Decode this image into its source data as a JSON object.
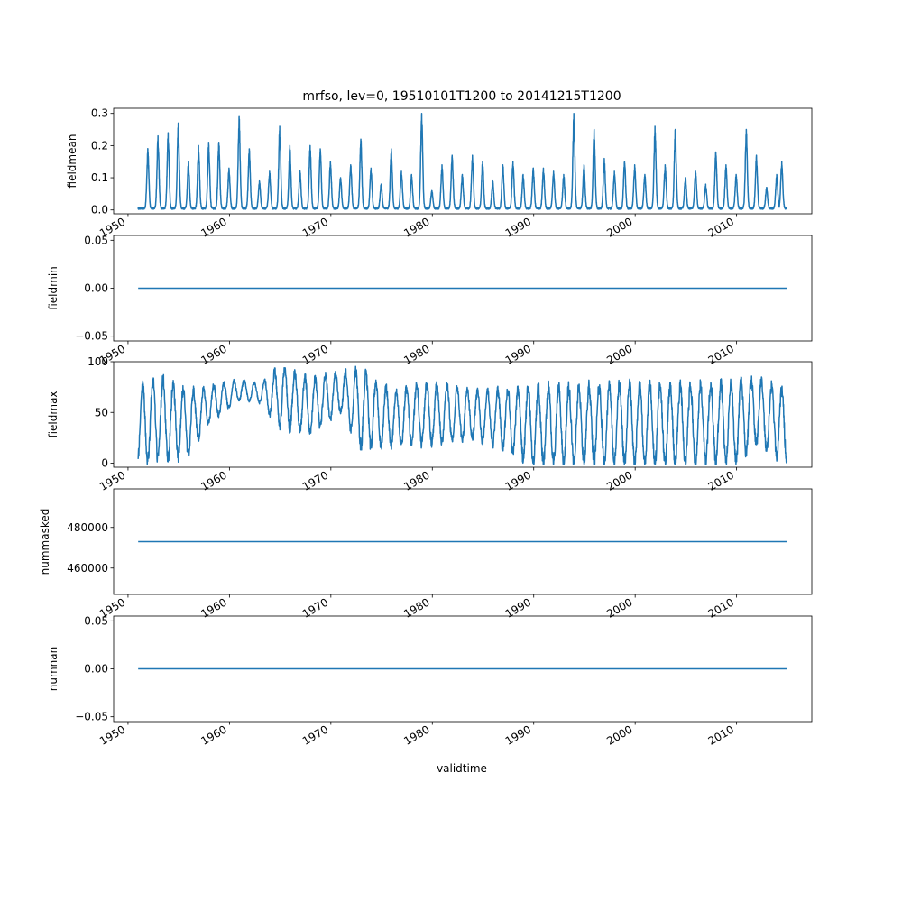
{
  "chart_data": {
    "type": "line",
    "title": "mrfso, lev=0, 19510101T1200 to 20141215T1200",
    "xlabel": "validtime",
    "x_range": [
      "1948-08-01",
      "2017-06-01"
    ],
    "x_ticks": [
      "1950",
      "1960",
      "1970",
      "1980",
      "1990",
      "2000",
      "2010"
    ],
    "series_color": "#1f77b4",
    "grid": false,
    "panels": [
      {
        "ylabel": "fieldmean",
        "ylim": [
          -0.012,
          0.316
        ],
        "y_ticks": [
          "0.0",
          "0.1",
          "0.2",
          "0.3"
        ],
        "pattern": "seasonal-peaks",
        "baseline": 0.005,
        "peaks": [
          [
            "1951-12-15",
            0.19
          ],
          [
            "1952-12-15",
            0.23
          ],
          [
            "1953-12-15",
            0.24
          ],
          [
            "1954-12-15",
            0.27
          ],
          [
            "1955-12-15",
            0.15
          ],
          [
            "1956-12-15",
            0.2
          ],
          [
            "1957-12-15",
            0.21
          ],
          [
            "1958-12-15",
            0.21
          ],
          [
            "1959-12-15",
            0.13
          ],
          [
            "1960-12-15",
            0.29
          ],
          [
            "1961-12-15",
            0.19
          ],
          [
            "1962-12-15",
            0.09
          ],
          [
            "1963-12-15",
            0.12
          ],
          [
            "1964-12-15",
            0.26
          ],
          [
            "1965-12-15",
            0.2
          ],
          [
            "1966-12-15",
            0.12
          ],
          [
            "1967-12-15",
            0.2
          ],
          [
            "1968-12-15",
            0.19
          ],
          [
            "1969-12-15",
            0.15
          ],
          [
            "1970-12-15",
            0.1
          ],
          [
            "1971-12-15",
            0.14
          ],
          [
            "1972-12-15",
            0.22
          ],
          [
            "1973-12-15",
            0.13
          ],
          [
            "1974-12-15",
            0.08
          ],
          [
            "1975-12-15",
            0.19
          ],
          [
            "1976-12-15",
            0.12
          ],
          [
            "1977-12-15",
            0.11
          ],
          [
            "1978-12-15",
            0.3
          ],
          [
            "1979-12-15",
            0.06
          ],
          [
            "1980-12-15",
            0.14
          ],
          [
            "1981-12-15",
            0.17
          ],
          [
            "1982-12-15",
            0.11
          ],
          [
            "1983-12-15",
            0.17
          ],
          [
            "1984-12-15",
            0.15
          ],
          [
            "1985-12-15",
            0.09
          ],
          [
            "1986-12-15",
            0.14
          ],
          [
            "1987-12-15",
            0.15
          ],
          [
            "1988-12-15",
            0.11
          ],
          [
            "1989-12-15",
            0.13
          ],
          [
            "1990-12-15",
            0.13
          ],
          [
            "1991-12-15",
            0.12
          ],
          [
            "1992-12-15",
            0.11
          ],
          [
            "1993-12-15",
            0.3
          ],
          [
            "1994-12-15",
            0.14
          ],
          [
            "1995-12-15",
            0.25
          ],
          [
            "1996-12-15",
            0.16
          ],
          [
            "1997-12-15",
            0.12
          ],
          [
            "1998-12-15",
            0.15
          ],
          [
            "1999-12-15",
            0.14
          ],
          [
            "2000-12-15",
            0.11
          ],
          [
            "2001-12-15",
            0.26
          ],
          [
            "2002-12-15",
            0.14
          ],
          [
            "2003-12-15",
            0.25
          ],
          [
            "2004-12-15",
            0.1
          ],
          [
            "2005-12-15",
            0.12
          ],
          [
            "2006-12-15",
            0.08
          ],
          [
            "2007-12-15",
            0.18
          ],
          [
            "2008-12-15",
            0.14
          ],
          [
            "2009-12-15",
            0.11
          ],
          [
            "2010-12-15",
            0.25
          ],
          [
            "2011-12-15",
            0.17
          ],
          [
            "2012-12-15",
            0.07
          ],
          [
            "2013-12-15",
            0.11
          ],
          [
            "2014-06-15",
            0.15
          ]
        ]
      },
      {
        "ylabel": "fieldmin",
        "ylim": [
          -0.055,
          0.055
        ],
        "y_ticks": [
          "−0.05",
          "0.00",
          "0.05"
        ],
        "pattern": "constant",
        "value": 0.0
      },
      {
        "ylabel": "fieldmax",
        "ylim": [
          -4,
          100
        ],
        "y_ticks": [
          "0",
          "50",
          "100"
        ],
        "pattern": "seasonal-cycle",
        "envelope": [
          [
            "1951-01-01",
            3,
            72
          ],
          [
            "1953-01-01",
            3,
            85
          ],
          [
            "1956-01-01",
            8,
            70
          ],
          [
            "1958-01-01",
            40,
            75
          ],
          [
            "1961-01-01",
            62,
            82
          ],
          [
            "1963-01-01",
            60,
            78
          ],
          [
            "1965-01-01",
            35,
            95
          ],
          [
            "1968-01-01",
            30,
            82
          ],
          [
            "1971-01-01",
            50,
            90
          ],
          [
            "1973-01-01",
            15,
            90
          ],
          [
            "1976-01-01",
            18,
            70
          ],
          [
            "1980-01-01",
            20,
            80
          ],
          [
            "1984-01-01",
            25,
            70
          ],
          [
            "1987-01-01",
            15,
            72
          ],
          [
            "1990-01-01",
            0,
            75
          ],
          [
            "1995-01-01",
            0,
            75
          ],
          [
            "2000-01-01",
            0,
            78
          ],
          [
            "2005-01-01",
            0,
            75
          ],
          [
            "2010-01-01",
            2,
            80
          ],
          [
            "2012-01-01",
            20,
            82
          ],
          [
            "2014-12-15",
            0,
            70
          ]
        ]
      },
      {
        "ylabel": "nummasked",
        "ylim": [
          447000,
          499000
        ],
        "y_ticks": [
          "460000",
          "480000"
        ],
        "pattern": "constant",
        "value": 473000
      },
      {
        "ylabel": "numnan",
        "ylim": [
          -0.055,
          0.055
        ],
        "y_ticks": [
          "−0.05",
          "0.00",
          "0.05"
        ],
        "pattern": "constant",
        "value": 0.0
      }
    ]
  }
}
